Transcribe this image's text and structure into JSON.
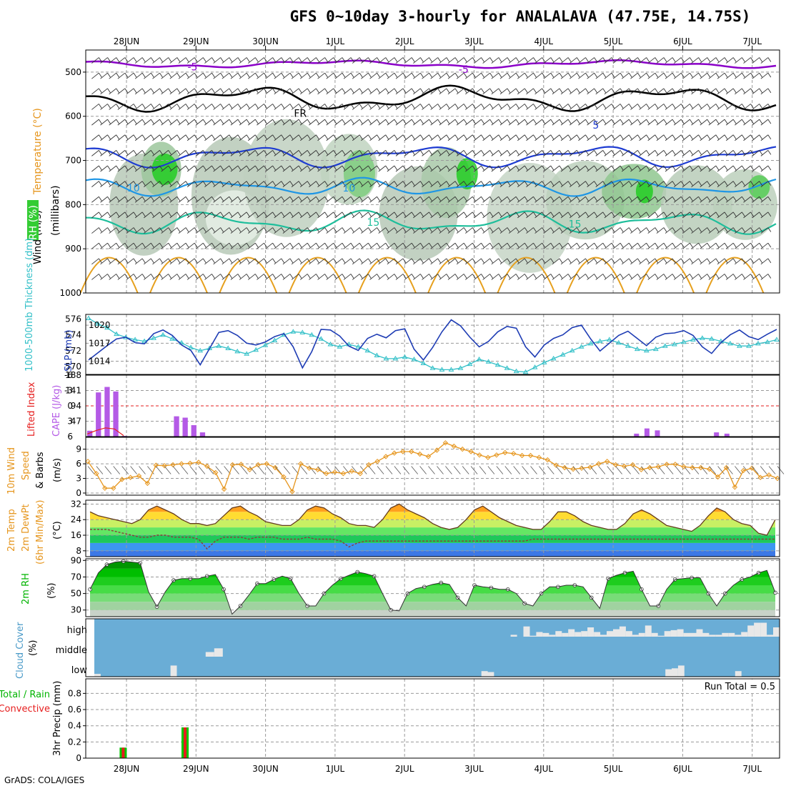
{
  "title": "GFS 0~10day 3-hourly for ANALALAVA (47.75E, 14.75S)",
  "footer": "GrADS: COLA/IGES",
  "days": [
    "28JUN",
    "29JUN",
    "30JUN",
    "1JUL",
    "2JUL",
    "3JUL",
    "4JUL",
    "5JUL",
    "6JUL",
    "7JUL"
  ],
  "colors": {
    "purple": "#8a00c8",
    "black": "#000000",
    "blue": "#1e3cd2",
    "sky": "#1e96e6",
    "teal": "#1ebe9b",
    "orange": "#e6a01e",
    "cyan": "#33c0c8",
    "cape": "#b45ae6",
    "slp": "#1e3cb4",
    "wind10": "#e6961e",
    "rh_green": "#00c800",
    "cloud": "#6aadd6",
    "precip_total": "#00c800",
    "precip_conv": "#e61e1e"
  },
  "panel_labels": {
    "upper_wind": "Wind (m/s)",
    "upper_temp": "Temperature (°C)",
    "upper_rh": "RH (%)",
    "upper_units": "(millibars)",
    "thickness": "1000-500mb Thickness (dm)",
    "slp": "SLP (mb)",
    "lifted": "Lifted Index",
    "cape": "CAPE (J/kg)",
    "wind10_a": "10m Wind",
    "wind10_b": "Speed",
    "wind10_c": "& Barbs",
    "wind10_units": "(m/s)",
    "temp_a": "2m Temp",
    "temp_b": "2m DewPt",
    "temp_c": "(6hr Min/Max)",
    "temp_units": "(°C)",
    "rh2m": "2m RH",
    "rh2m_units": "(%)",
    "cloud_a": "Cloud Cover",
    "cloud_units": "(%)",
    "cloud_high": "high",
    "cloud_middle": "middle",
    "cloud_low": "low",
    "precip_a": "Total / Rain",
    "precip_b": "Convective",
    "precip_units": "3hr Precip (mm)",
    "run_total": "Run Total = 0.5"
  },
  "chart_data": [
    {
      "type": "contour",
      "name": "upper air cross-section",
      "y_ticks": [
        "500",
        "600",
        "700",
        "800",
        "900",
        "1000"
      ],
      "ylim": [
        1000,
        450
      ],
      "contour_labels": [
        {
          "text": "-5",
          "level_mb": 488,
          "day": 0.95,
          "color": "purple"
        },
        {
          "text": "-5",
          "level_mb": 494,
          "day": 4.85,
          "color": "purple"
        },
        {
          "text": "FR",
          "level_mb": 593,
          "day": 2.5,
          "color": "black"
        },
        {
          "text": "5",
          "level_mb": 620,
          "day": 6.75,
          "color": "blue"
        },
        {
          "text": "10",
          "level_mb": 762,
          "day": 0.1,
          "color": "sky"
        },
        {
          "text": "10",
          "level_mb": 762,
          "day": 3.2,
          "color": "sky"
        },
        {
          "text": "15",
          "level_mb": 840,
          "day": 3.55,
          "color": "teal"
        },
        {
          "text": "15",
          "level_mb": 844,
          "day": 6.45,
          "color": "teal"
        }
      ]
    },
    {
      "type": "line",
      "name": "thickness & slp",
      "thickness_ticks": [
        "570",
        "572",
        "574",
        "576"
      ],
      "slp_ticks": [
        "1014",
        "1017",
        "1020"
      ],
      "thickness": [
        576.1,
        575.4,
        574.9,
        574.1,
        573.7,
        573.4,
        573.2,
        573.6,
        574.0,
        573.5,
        573.0,
        572.4,
        572.0,
        572.3,
        572.6,
        572.3,
        571.9,
        571.6,
        572.1,
        572.7,
        573.3,
        574.0,
        574.4,
        574.3,
        574.0,
        573.5,
        572.8,
        572.5,
        572.8,
        572.5,
        572.0,
        571.4,
        571.0,
        571.0,
        571.2,
        570.9,
        570.4,
        569.8,
        569.6,
        569.6,
        569.8,
        570.3,
        570.9,
        570.6,
        570.2,
        569.8,
        569.4,
        569.3,
        569.9,
        570.5,
        571.0,
        571.5,
        572.0,
        572.5,
        572.9,
        573.2,
        573.4,
        573.0,
        572.6,
        572.2,
        572.0,
        572.2,
        572.6,
        572.8,
        573.1,
        573.4,
        573.6,
        573.5,
        573.2,
        572.9,
        572.6,
        572.6,
        572.9,
        573.1,
        573.4
      ],
      "slp": [
        1014.2,
        1015.4,
        1016.6,
        1017.7,
        1018.0,
        1017.1,
        1016.9,
        1018.6,
        1019.2,
        1018.3,
        1016.7,
        1015.8,
        1013.4,
        1016.1,
        1018.8,
        1019.1,
        1018.3,
        1017.0,
        1016.7,
        1017.2,
        1018.1,
        1018.6,
        1016.4,
        1012.9,
        1015.6,
        1019.3,
        1019.2,
        1018.2,
        1016.5,
        1015.8,
        1017.8,
        1018.5,
        1017.9,
        1019.1,
        1019.4,
        1016.0,
        1014.2,
        1016.3,
        1018.9,
        1020.9,
        1019.9,
        1018.0,
        1016.4,
        1017.3,
        1018.9,
        1019.8,
        1019.5,
        1016.4,
        1014.7,
        1016.7,
        1017.8,
        1018.4,
        1019.6,
        1020.0,
        1017.7,
        1015.7,
        1017.0,
        1018.3,
        1019.0,
        1017.8,
        1016.6,
        1018.0,
        1018.6,
        1018.7,
        1019.1,
        1018.3,
        1016.4,
        1015.3,
        1017.1,
        1018.4,
        1019.2,
        1018.1,
        1017.6,
        1018.5,
        1019.3
      ]
    },
    {
      "type": "bar",
      "name": "cape & lifted index",
      "cape_ticks": [
        "47",
        "94",
        "141",
        "188"
      ],
      "lifted_ticks": [
        "6",
        "3",
        "0",
        "-3",
        "-6"
      ],
      "cape": [
        18,
        135,
        152,
        138,
        2,
        0,
        0,
        0,
        0,
        0,
        62,
        58,
        35,
        13,
        0,
        0,
        0,
        0,
        0,
        0,
        0,
        0,
        0,
        0,
        0,
        0,
        0,
        0,
        0,
        0,
        0,
        0,
        0,
        0,
        0,
        0,
        0,
        0,
        0,
        0,
        0,
        0,
        0,
        0,
        0,
        0,
        0,
        0,
        0,
        0,
        0,
        0,
        0,
        0,
        0,
        0,
        0,
        0,
        0,
        0,
        0,
        0,
        0,
        0,
        0,
        0,
        0,
        0,
        0,
        0,
        0,
        0,
        0,
        0,
        0,
        0,
        0,
        0,
        0,
        0
      ],
      "cape_late": [
        {
          "day": 7.3,
          "value": 9
        },
        {
          "day": 7.45,
          "value": 25
        },
        {
          "day": 7.6,
          "value": 19
        },
        {
          "day": 8.45,
          "value": 13
        },
        {
          "day": 8.6,
          "value": 9
        }
      ],
      "lifted_index": [
        5.5,
        4.8,
        4.3,
        4.5,
        5.8
      ]
    },
    {
      "type": "line",
      "name": "10m wind speed",
      "y_ticks": [
        "0",
        "3",
        "6",
        "9"
      ],
      "ylim": [
        0,
        11
      ],
      "values": [
        6.5,
        4.0,
        1.0,
        1.0,
        2.8,
        3.2,
        3.5,
        2.0,
        5.7,
        5.6,
        5.8,
        6.0,
        6.1,
        6.3,
        5.5,
        4.2,
        0.8,
        5.8,
        5.9,
        4.8,
        5.8,
        6.0,
        5.2,
        3.3,
        0.3,
        6.0,
        5.1,
        4.8,
        4.0,
        4.3,
        4.0,
        4.5,
        4.0,
        5.8,
        6.5,
        7.5,
        8.2,
        8.5,
        8.5,
        8.0,
        7.5,
        8.8,
        10.3,
        9.6,
        9.0,
        8.5,
        7.8,
        7.3,
        7.8,
        8.3,
        8.1,
        7.7,
        7.7,
        7.3,
        6.8,
        5.7,
        5.2,
        4.9,
        5.1,
        5.3,
        6.0,
        6.5,
        5.8,
        5.5,
        5.8,
        4.8,
        5.2,
        5.4,
        5.9,
        5.9,
        5.4,
        5.2,
        5.2,
        4.9,
        3.3,
        5.2,
        1.2,
        4.6,
        5.1,
        3.2,
        3.7,
        3.0
      ]
    },
    {
      "type": "area",
      "name": "2m temperature",
      "y_ticks": [
        "8",
        "16",
        "24",
        "32"
      ],
      "ylim": [
        5,
        34
      ],
      "temp": [
        28,
        26,
        25,
        24,
        23,
        22,
        24,
        29,
        31,
        29,
        27,
        24,
        22,
        22,
        21,
        22,
        26,
        30,
        31,
        28,
        26,
        23,
        22,
        21,
        21,
        24,
        29,
        31,
        30,
        27,
        25,
        22,
        21,
        21,
        20,
        24,
        30,
        32,
        29,
        27,
        25,
        22,
        20,
        19,
        20,
        24,
        29,
        31,
        28,
        25,
        23,
        21,
        20,
        19,
        19,
        23,
        28,
        28,
        26,
        23,
        21,
        20,
        19,
        19,
        22,
        27,
        29,
        27,
        24,
        21,
        20,
        19,
        18,
        21,
        26,
        30,
        28,
        24,
        22,
        21,
        17,
        16,
        24
      ],
      "dewpt": [
        19,
        19,
        19,
        18,
        17,
        16,
        15,
        15,
        16,
        16,
        15,
        15,
        15,
        14,
        9,
        13,
        15,
        15,
        15,
        14,
        15,
        15,
        15,
        14,
        14,
        14,
        15,
        14,
        14,
        14,
        13,
        10,
        12,
        13,
        13,
        13,
        13,
        13,
        13,
        13,
        13,
        13,
        13,
        13,
        13,
        13,
        13,
        13,
        13,
        13,
        13,
        13,
        13,
        14,
        14,
        14,
        14,
        14,
        14,
        14,
        14,
        14,
        14,
        14,
        14,
        14,
        14,
        14,
        14,
        14,
        14,
        14,
        14,
        14,
        14,
        14,
        14,
        14,
        14,
        14,
        14,
        14,
        14
      ]
    },
    {
      "type": "area",
      "name": "2m relative humidity",
      "y_ticks": [
        "30",
        "50",
        "70",
        "90"
      ],
      "ylim": [
        22,
        92
      ],
      "values": [
        55,
        75,
        85,
        88,
        89,
        88,
        87,
        52,
        34,
        52,
        66,
        68,
        68,
        68,
        71,
        73,
        55,
        25,
        35,
        48,
        62,
        62,
        67,
        71,
        68,
        50,
        35,
        35,
        50,
        60,
        68,
        72,
        76,
        74,
        71,
        50,
        30,
        29,
        50,
        56,
        58,
        61,
        63,
        61,
        45,
        35,
        60,
        58,
        57,
        55,
        55,
        50,
        38,
        35,
        50,
        58,
        58,
        60,
        60,
        58,
        45,
        32,
        68,
        72,
        75,
        77,
        55,
        35,
        35,
        55,
        67,
        68,
        69,
        69,
        50,
        35,
        50,
        60,
        67,
        70,
        75,
        78,
        51
      ]
    },
    {
      "type": "bar",
      "name": "cloud cover",
      "high": [
        0,
        0,
        0,
        0,
        0,
        0,
        0,
        0,
        0,
        0,
        0,
        0,
        0,
        0,
        0,
        0,
        0,
        0,
        0,
        0,
        0,
        0,
        0,
        0,
        0,
        0,
        0,
        0,
        0,
        0,
        0,
        0,
        0,
        0,
        0,
        0,
        0,
        0,
        0,
        0,
        0,
        0,
        0,
        0,
        0,
        0,
        0,
        0,
        0,
        0,
        0,
        0,
        0,
        0,
        0,
        0,
        0,
        0,
        0,
        0,
        0,
        0,
        0,
        0,
        0,
        10,
        0,
        55,
        5,
        25,
        20,
        10,
        30,
        20,
        40,
        25,
        30,
        50,
        25,
        10,
        30,
        40,
        55,
        30,
        10,
        20,
        60,
        20,
        5,
        30,
        35,
        40,
        20,
        20,
        40,
        20,
        10,
        10,
        20,
        20,
        10,
        25,
        60,
        75,
        75,
        10,
        50
      ],
      "middle": [
        0,
        0,
        0,
        0,
        0,
        0,
        0,
        0,
        0,
        0,
        0,
        0,
        0,
        25,
        45,
        0,
        0,
        0,
        0,
        0,
        0,
        0,
        0,
        0,
        0
      ],
      "low": [
        15,
        0,
        0,
        0,
        0,
        0,
        0,
        0,
        0,
        0,
        0,
        0,
        60,
        0,
        0,
        0,
        0,
        0,
        0,
        0,
        0,
        0,
        0,
        0,
        0,
        0,
        0,
        0,
        0,
        0,
        0,
        0,
        0,
        0,
        0,
        0,
        0,
        0,
        0,
        0,
        0,
        0,
        0,
        0,
        0,
        0,
        0,
        0,
        0,
        0,
        0,
        0,
        0,
        0,
        0,
        0,
        0,
        0,
        0,
        0,
        0,
        30,
        25,
        0,
        0,
        0,
        0,
        0,
        0,
        0,
        0,
        0,
        0,
        0,
        0,
        0,
        0,
        0,
        0,
        0,
        0,
        0,
        0,
        0,
        0,
        0,
        0,
        0,
        0,
        0,
        40,
        45,
        60,
        0,
        0,
        0,
        0,
        0,
        0,
        0,
        0,
        30,
        0,
        0,
        0,
        0,
        0,
        0
      ]
    },
    {
      "type": "bar",
      "name": "3hr precip",
      "y_ticks": [
        "0",
        "0.2",
        "0.4",
        "0.6",
        "0.8"
      ],
      "ylim": [
        0,
        0.98
      ],
      "bars": [
        {
          "day": 0.21,
          "total": 0.13,
          "conv": 0.13
        },
        {
          "day": 1.1,
          "total": 0.38,
          "conv": 0.38
        }
      ]
    }
  ]
}
